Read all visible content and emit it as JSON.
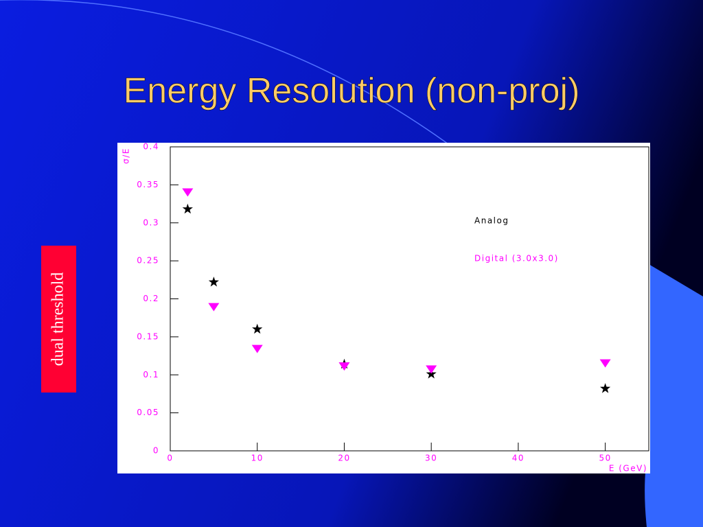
{
  "chart_data": {
    "type": "scatter",
    "title": "Energy Resolution (non-proj)",
    "side_label": "dual threshold",
    "x_label": "E (GeV)",
    "y_label": "σ/E",
    "series": [
      {
        "name": "Analog",
        "color": "#000000",
        "marker": "star",
        "x": [
          2,
          5,
          10,
          20,
          30,
          50
        ],
        "values": [
          0.318,
          0.222,
          0.16,
          0.114,
          0.101,
          0.082
        ]
      },
      {
        "name": "Digital (3.0x3.0)",
        "color": "#ff00ff",
        "marker": "triangle-down",
        "x": [
          2,
          5,
          10,
          20,
          30,
          50
        ],
        "values": [
          0.34,
          0.189,
          0.134,
          0.111,
          0.107,
          0.115
        ]
      }
    ],
    "xlim": [
      0,
      55
    ],
    "xticks": [
      0,
      10,
      20,
      30,
      40,
      50
    ],
    "ylim": [
      0,
      0.4
    ],
    "yticks": [
      0,
      0.05,
      0.1,
      0.15,
      0.2,
      0.25,
      0.3,
      0.35,
      0.4
    ]
  }
}
